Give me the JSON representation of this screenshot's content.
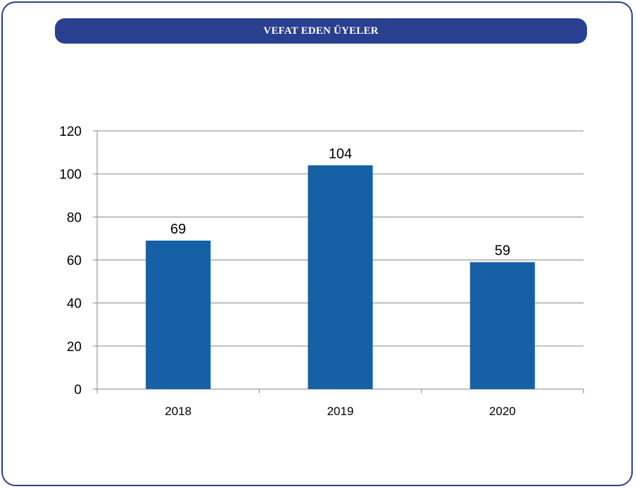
{
  "title": "VEFAT EDEN ÜYELER",
  "colors": {
    "frame": "#2b3f8c",
    "title_bar": "#2a3f8f",
    "bar": "#1660a6",
    "grid": "#868686"
  },
  "chart_data": {
    "type": "bar",
    "title": "VEFAT EDEN ÜYELER",
    "categories": [
      "2018",
      "2019",
      "2020"
    ],
    "values": [
      69,
      104,
      59
    ],
    "data_labels": [
      "69",
      "104",
      "59"
    ],
    "ylim": [
      0,
      120
    ],
    "yticks": [
      0,
      20,
      40,
      60,
      80,
      100,
      120
    ],
    "xlabel": "",
    "ylabel": "",
    "grid": true,
    "legend": "none"
  }
}
